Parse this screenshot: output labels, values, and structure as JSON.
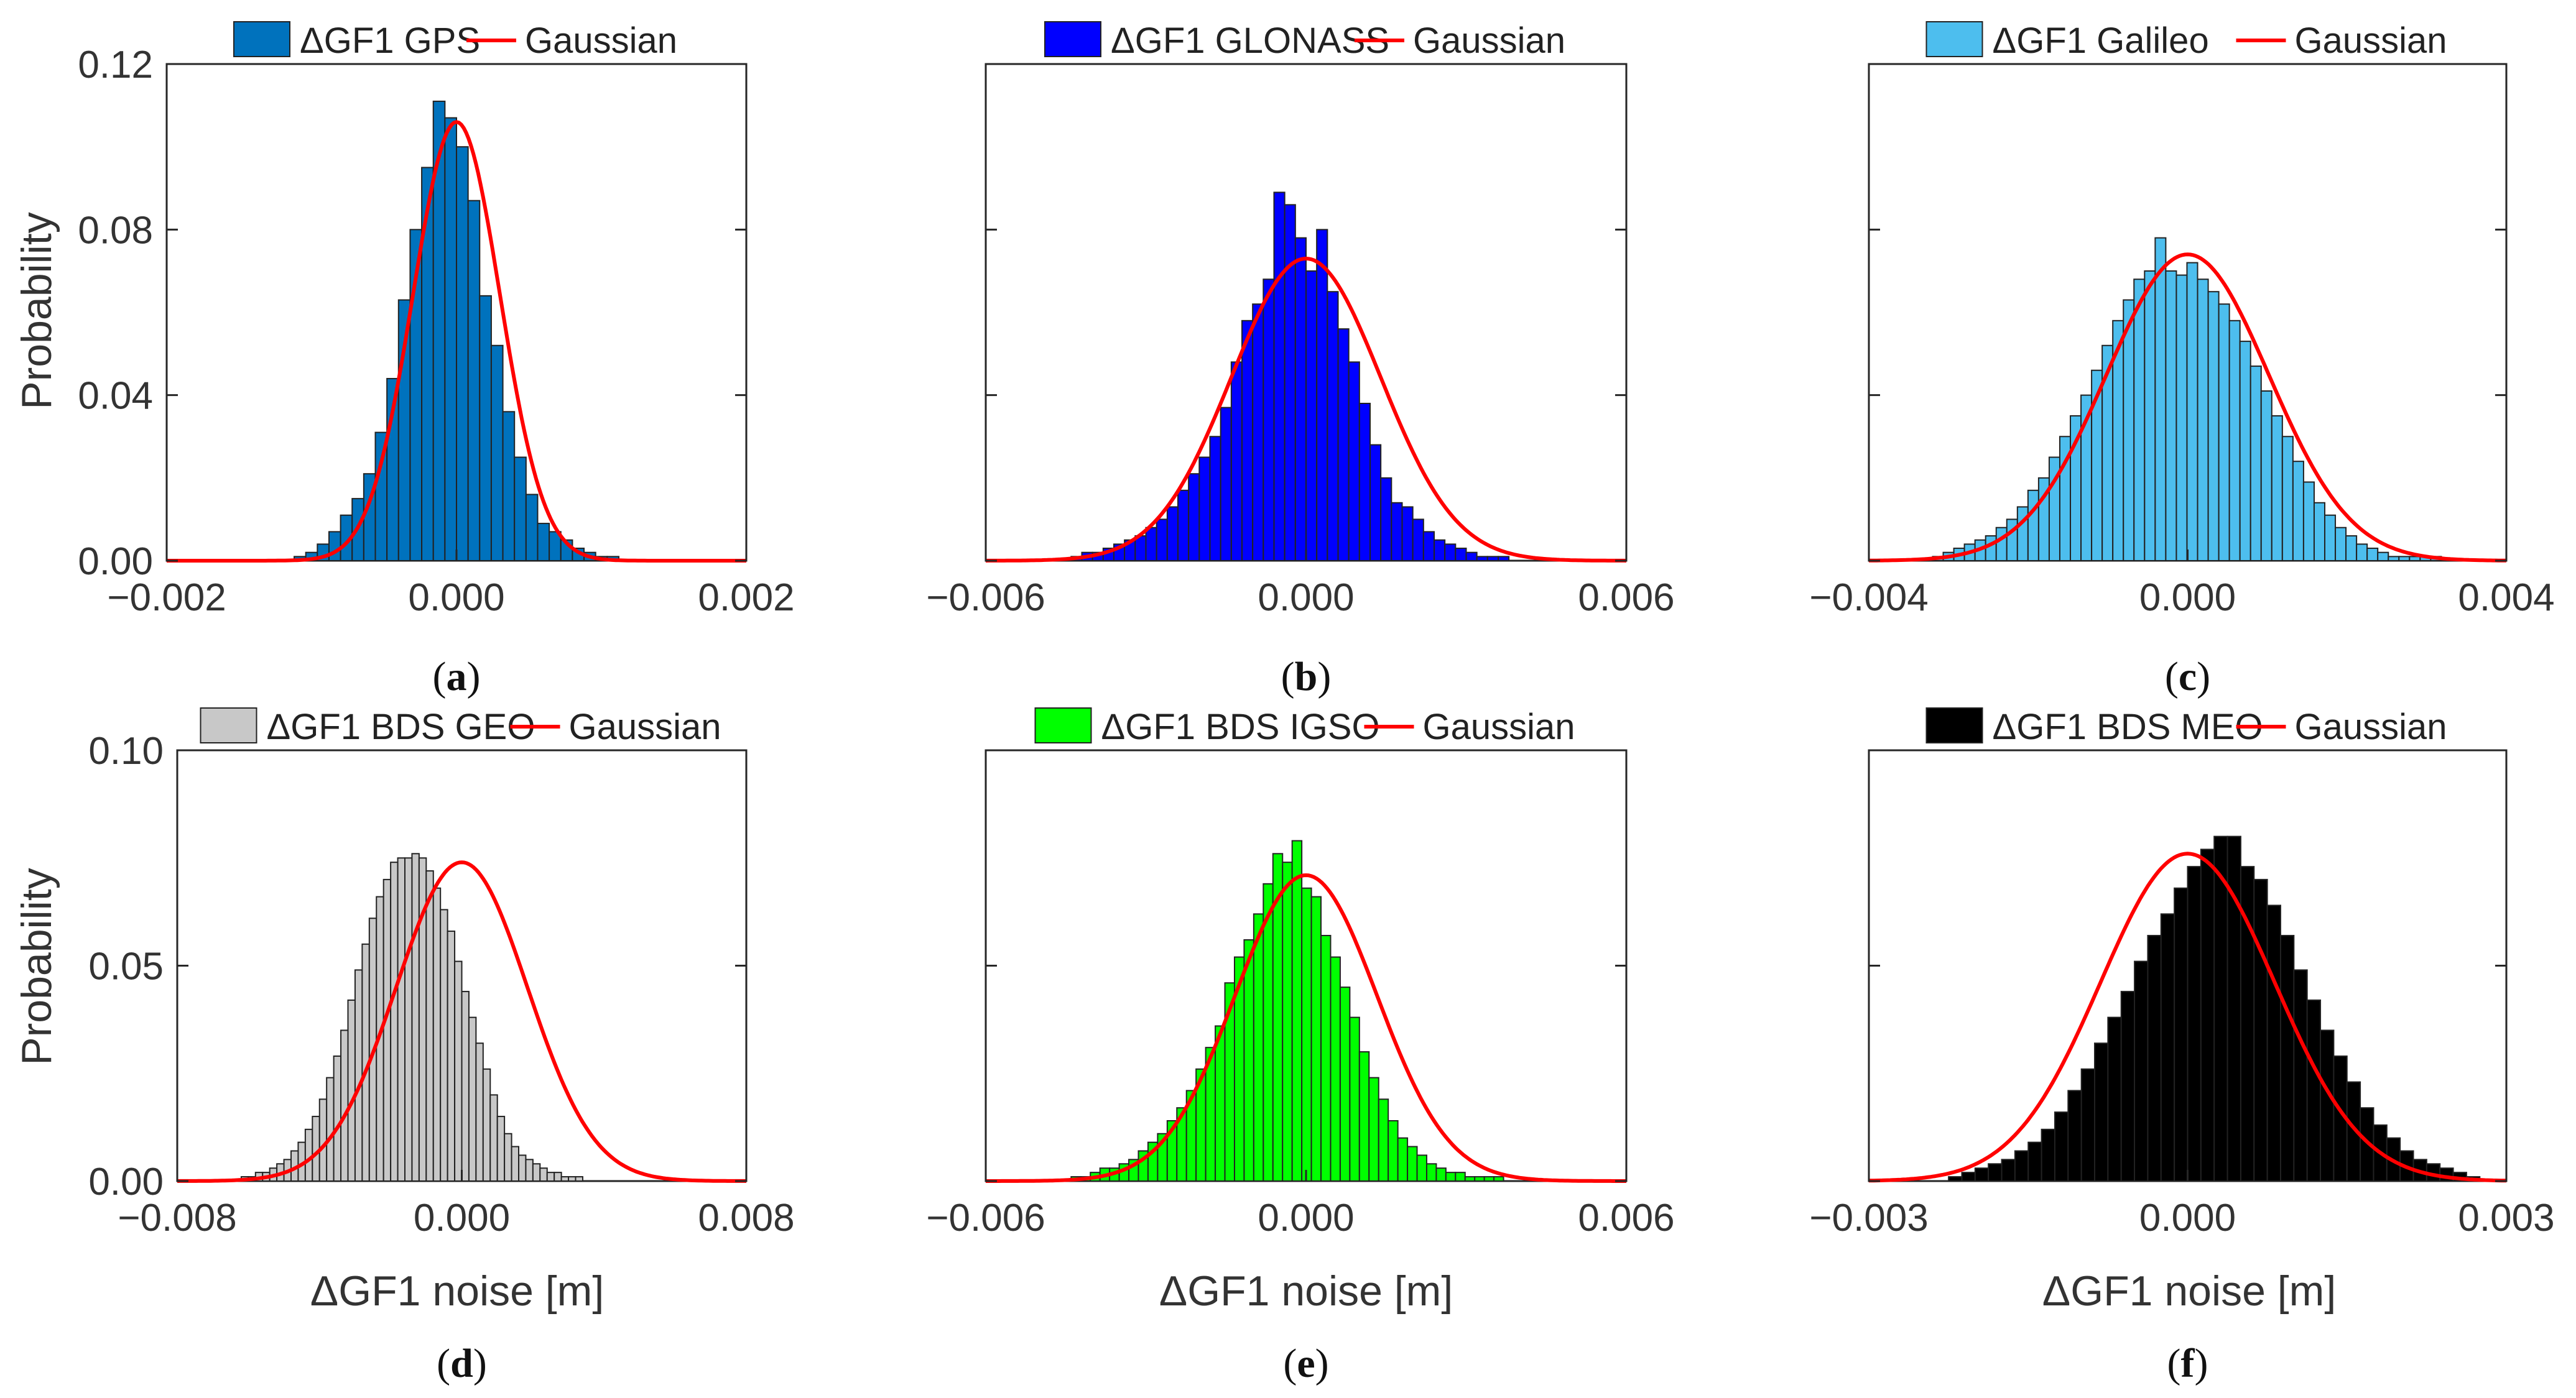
{
  "figure_labels": {
    "ylabel": "Probability",
    "xlabel": "ΔGF1 noise [m]",
    "gaussian_label": "Gaussian"
  },
  "chart_data": [
    {
      "id": "a",
      "type": "bar",
      "panel_label": "a",
      "series_name": "ΔGF1 GPS",
      "fit_name": "Gaussian",
      "bar_color": "#0072BD",
      "fit_color": "#FF0000",
      "xlim": [
        -0.002,
        0.002
      ],
      "ylim": [
        0,
        0.12
      ],
      "xticks": [
        "−0.002",
        "0.000",
        "0.002"
      ],
      "yticks": [
        "0.00",
        "0.04",
        "0.08",
        "0.12"
      ],
      "ytick_values": [
        0,
        0.04,
        0.08,
        0.12
      ],
      "show_ylabel": true,
      "show_xlabel": false,
      "bin_start": -0.00112,
      "bin_width": 8e-05,
      "values": [
        0.001,
        0.002,
        0.004,
        0.007,
        0.011,
        0.015,
        0.021,
        0.031,
        0.044,
        0.063,
        0.08,
        0.095,
        0.111,
        0.107,
        0.1,
        0.087,
        0.064,
        0.052,
        0.036,
        0.025,
        0.016,
        0.009,
        0.007,
        0.005,
        0.003,
        0.002,
        0.001,
        0.001
      ],
      "gaussian": {
        "mu": 0.0,
        "sigma": 0.0003,
        "peak": 0.106
      }
    },
    {
      "id": "b",
      "type": "bar",
      "panel_label": "b",
      "series_name": "ΔGF1 GLONASS",
      "fit_name": "Gaussian",
      "bar_color": "#0000FF",
      "fit_color": "#FF0000",
      "xlim": [
        -0.006,
        0.006
      ],
      "ylim": [
        0,
        0.12
      ],
      "xticks": [
        "−0.006",
        "0.000",
        "0.006"
      ],
      "yticks": [],
      "ytick_values": [
        0,
        0.04,
        0.08,
        0.12
      ],
      "show_ylabel": false,
      "show_xlabel": false,
      "bin_start": -0.0044,
      "bin_width": 0.0002,
      "values": [
        0.001,
        0.002,
        0.002,
        0.003,
        0.004,
        0.005,
        0.006,
        0.008,
        0.01,
        0.013,
        0.017,
        0.021,
        0.025,
        0.03,
        0.037,
        0.048,
        0.058,
        0.062,
        0.068,
        0.089,
        0.086,
        0.078,
        0.07,
        0.08,
        0.065,
        0.056,
        0.048,
        0.038,
        0.028,
        0.02,
        0.014,
        0.013,
        0.01,
        0.007,
        0.005,
        0.004,
        0.003,
        0.002,
        0.001,
        0.001,
        0.001
      ],
      "gaussian": {
        "mu": 0.0,
        "sigma": 0.0014,
        "peak": 0.073
      }
    },
    {
      "id": "c",
      "type": "bar",
      "panel_label": "c",
      "series_name": "ΔGF1 Galileo",
      "fit_name": "Gaussian",
      "bar_color": "#4DBEEE",
      "fit_color": "#FF0000",
      "xlim": [
        -0.004,
        0.004
      ],
      "ylim": [
        0,
        0.12
      ],
      "xticks": [
        "−0.004",
        "0.000",
        "0.004"
      ],
      "yticks": [],
      "ytick_values": [
        0,
        0.04,
        0.08,
        0.12
      ],
      "show_ylabel": false,
      "show_xlabel": false,
      "bin_start": -0.0032,
      "bin_width": 0.000133,
      "values": [
        0.001,
        0.002,
        0.003,
        0.004,
        0.005,
        0.006,
        0.008,
        0.01,
        0.013,
        0.017,
        0.02,
        0.025,
        0.03,
        0.035,
        0.04,
        0.046,
        0.052,
        0.058,
        0.063,
        0.068,
        0.07,
        0.078,
        0.07,
        0.069,
        0.072,
        0.068,
        0.065,
        0.062,
        0.058,
        0.053,
        0.047,
        0.041,
        0.035,
        0.03,
        0.024,
        0.019,
        0.014,
        0.011,
        0.008,
        0.006,
        0.004,
        0.003,
        0.002,
        0.001,
        0.001,
        0.001,
        0.001,
        0.001
      ],
      "gaussian": {
        "mu": 0.0,
        "sigma": 0.00102,
        "peak": 0.074
      }
    },
    {
      "id": "d",
      "type": "bar",
      "panel_label": "d",
      "series_name": "ΔGF1 BDS GEO",
      "fit_name": "Gaussian",
      "bar_color": "#C8C8C8",
      "fit_color": "#FF0000",
      "xlim": [
        -0.008,
        0.008
      ],
      "ylim": [
        0,
        0.1
      ],
      "xticks": [
        "−0.008",
        "0.000",
        "0.008"
      ],
      "yticks": [
        "0.00",
        "0.05",
        "0.10"
      ],
      "ytick_values": [
        0,
        0.05,
        0.1
      ],
      "show_ylabel": true,
      "show_xlabel": true,
      "bin_start": -0.0062,
      "bin_width": 0.0002,
      "values": [
        0.001,
        0.001,
        0.002,
        0.002,
        0.003,
        0.004,
        0.005,
        0.007,
        0.009,
        0.012,
        0.015,
        0.019,
        0.024,
        0.029,
        0.035,
        0.042,
        0.049,
        0.055,
        0.061,
        0.066,
        0.07,
        0.074,
        0.075,
        0.075,
        0.076,
        0.075,
        0.072,
        0.068,
        0.063,
        0.058,
        0.051,
        0.044,
        0.038,
        0.032,
        0.026,
        0.02,
        0.015,
        0.011,
        0.008,
        0.006,
        0.005,
        0.004,
        0.003,
        0.002,
        0.002,
        0.001,
        0.001,
        0.001
      ],
      "gaussian": {
        "mu": 0.0,
        "sigma": 0.00185,
        "peak": 0.074
      }
    },
    {
      "id": "e",
      "type": "bar",
      "panel_label": "e",
      "series_name": "ΔGF1 BDS IGSO",
      "fit_name": "Gaussian",
      "bar_color": "#00FF00",
      "fit_color": "#FF0000",
      "xlim": [
        -0.006,
        0.006
      ],
      "ylim": [
        0,
        0.1
      ],
      "xticks": [
        "−0.006",
        "0.000",
        "0.006"
      ],
      "yticks": [],
      "ytick_values": [
        0,
        0.05,
        0.1
      ],
      "show_ylabel": false,
      "show_xlabel": true,
      "bin_start": -0.0044,
      "bin_width": 0.00018,
      "values": [
        0.001,
        0.001,
        0.002,
        0.003,
        0.003,
        0.004,
        0.005,
        0.007,
        0.009,
        0.011,
        0.014,
        0.017,
        0.021,
        0.026,
        0.031,
        0.036,
        0.046,
        0.052,
        0.056,
        0.062,
        0.069,
        0.076,
        0.074,
        0.079,
        0.068,
        0.066,
        0.057,
        0.052,
        0.045,
        0.038,
        0.03,
        0.024,
        0.019,
        0.014,
        0.01,
        0.008,
        0.006,
        0.004,
        0.003,
        0.002,
        0.002,
        0.001,
        0.001,
        0.001,
        0.001
      ],
      "gaussian": {
        "mu": 0.0,
        "sigma": 0.00133,
        "peak": 0.071
      }
    },
    {
      "id": "f",
      "type": "bar",
      "panel_label": "f",
      "series_name": "ΔGF1 BDS MEO",
      "fit_name": "Gaussian",
      "bar_color": "#000000",
      "fit_color": "#FF0000",
      "xlim": [
        -0.003,
        0.003
      ],
      "ylim": [
        0,
        0.1
      ],
      "xticks": [
        "−0.003",
        "0.000",
        "0.003"
      ],
      "yticks": [],
      "ytick_values": [
        0,
        0.05,
        0.1
      ],
      "show_ylabel": false,
      "show_xlabel": true,
      "bin_start": -0.00225,
      "bin_width": 0.000125,
      "values": [
        0.001,
        0.002,
        0.003,
        0.004,
        0.005,
        0.007,
        0.009,
        0.012,
        0.016,
        0.021,
        0.026,
        0.032,
        0.038,
        0.044,
        0.051,
        0.057,
        0.062,
        0.068,
        0.073,
        0.077,
        0.08,
        0.08,
        0.073,
        0.07,
        0.064,
        0.057,
        0.049,
        0.042,
        0.035,
        0.029,
        0.023,
        0.017,
        0.013,
        0.01,
        0.007,
        0.005,
        0.004,
        0.003,
        0.002,
        0.001
      ],
      "gaussian": {
        "mu": 0.0,
        "sigma": 0.00082,
        "peak": 0.076
      }
    }
  ]
}
